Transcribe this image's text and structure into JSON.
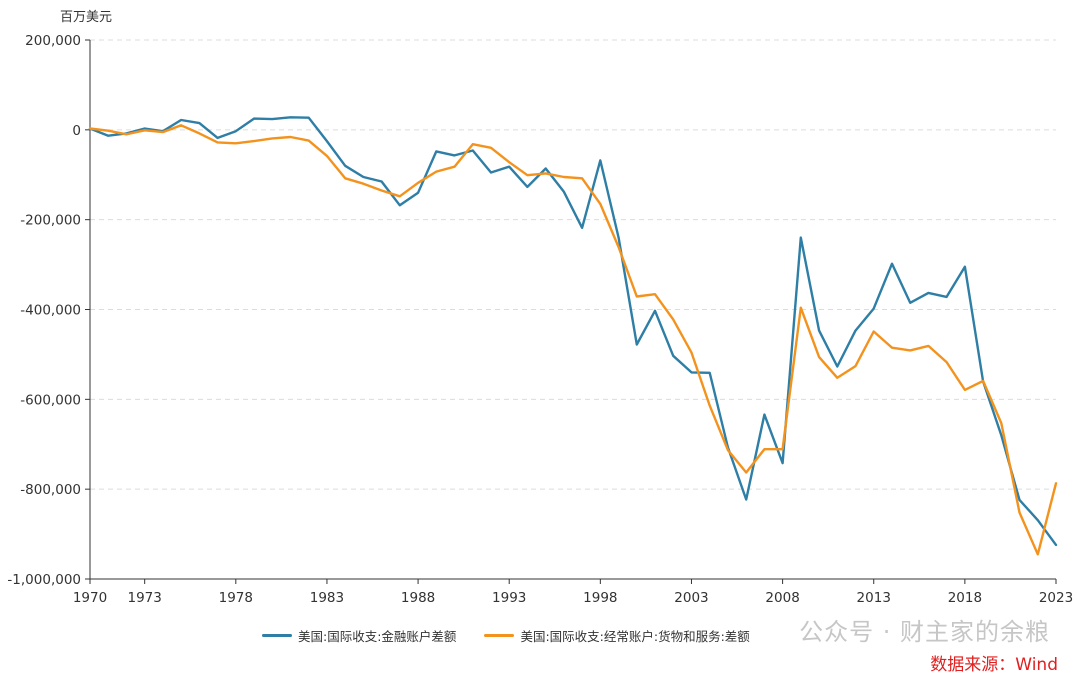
{
  "chart_data": {
    "type": "line",
    "unit_label": "百万美元",
    "x": [
      1970,
      1971,
      1972,
      1973,
      1974,
      1975,
      1976,
      1977,
      1978,
      1979,
      1980,
      1981,
      1982,
      1983,
      1984,
      1985,
      1986,
      1987,
      1988,
      1989,
      1990,
      1991,
      1992,
      1993,
      1994,
      1995,
      1996,
      1997,
      1998,
      1999,
      2000,
      2001,
      2002,
      2003,
      2004,
      2005,
      2006,
      2007,
      2008,
      2009,
      2010,
      2011,
      2012,
      2013,
      2014,
      2015,
      2016,
      2017,
      2018,
      2019,
      2020,
      2021,
      2022,
      2023
    ],
    "x_ticks": [
      "1970",
      "1973",
      "1978",
      "1983",
      "1988",
      "1993",
      "1998",
      "2003",
      "2008",
      "2013",
      "2018",
      "2023"
    ],
    "y_ticks": [
      "200,000",
      "0",
      "-200,000",
      "-400,000",
      "-600,000",
      "-800,000",
      "-1,000,000"
    ],
    "ylim": [
      -1000000,
      200000
    ],
    "grid": true,
    "legend_position": "bottom",
    "series": [
      {
        "name": "美国:国际收支:金融账户差额",
        "color": "#2e7ea6",
        "values": [
          3000,
          -13000,
          -8000,
          3000,
          -3000,
          22000,
          15000,
          -18000,
          -3000,
          25000,
          24000,
          28000,
          27000,
          -25000,
          -80000,
          -105000,
          -115000,
          -168000,
          -140000,
          -48000,
          -57000,
          -46000,
          -95000,
          -82000,
          -127000,
          -86000,
          -138000,
          -218000,
          -68000,
          -240000,
          -478000,
          -403000,
          -503000,
          -540000,
          -541000,
          -707000,
          -823000,
          -634000,
          -742000,
          -240000,
          -447000,
          -527000,
          -447000,
          -398000,
          -298000,
          -385000,
          -363000,
          -372000,
          -305000,
          -560000,
          -680000,
          -824000,
          -869000,
          -924000
        ]
      },
      {
        "name": "美国:国际收支:经常账户:货物和服务:差额",
        "color": "#f3931e",
        "values": [
          3000,
          -2000,
          -10000,
          -1000,
          -5000,
          10000,
          -8000,
          -28000,
          -30000,
          -25000,
          -19000,
          -16000,
          -24000,
          -58000,
          -108000,
          -120000,
          -135000,
          -148000,
          -118000,
          -93000,
          -82000,
          -32000,
          -40000,
          -72000,
          -101000,
          -97000,
          -105000,
          -108000,
          -165000,
          -261000,
          -371000,
          -366000,
          -422000,
          -496000,
          -614000,
          -713000,
          -763000,
          -711000,
          -711000,
          -396000,
          -506000,
          -552000,
          -526000,
          -449000,
          -485000,
          -491000,
          -481000,
          -517000,
          -579000,
          -559000,
          -653000,
          -852000,
          -945000,
          -787000
        ]
      }
    ]
  },
  "watermark": "公众号 · 财主家的余粮",
  "source": "数据来源：Wind"
}
